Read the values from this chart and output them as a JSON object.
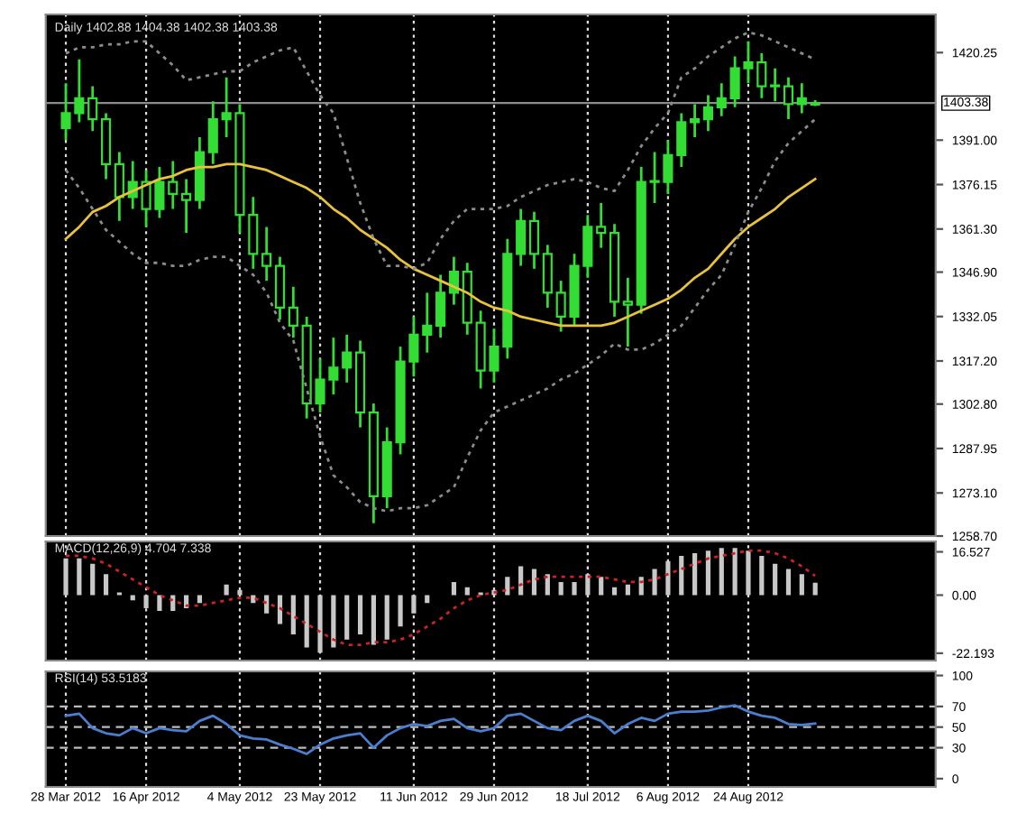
{
  "chart_data": [
    {
      "type": "candlestick",
      "title": "Daily 1402.88 1404.38 1402.38 1403.38",
      "color": "#33dd33",
      "categories": [
        null,
        null,
        null,
        null,
        null,
        null,
        null,
        null,
        null,
        null,
        null,
        null,
        null,
        null,
        null,
        null,
        null,
        null,
        null,
        null,
        null,
        null,
        null,
        null,
        null,
        null,
        null,
        null,
        null,
        null,
        null,
        null,
        null,
        null,
        null,
        null,
        null,
        null,
        null,
        null,
        null,
        null,
        null,
        null,
        null,
        null,
        null,
        null,
        null,
        null,
        null,
        null,
        null,
        null,
        null,
        null,
        null
      ],
      "ohlc": [
        [
          1395,
          1410,
          1391,
          1400
        ],
        [
          1400,
          1418,
          1397,
          1405
        ],
        [
          1405,
          1409,
          1394,
          1398
        ],
        [
          1398,
          1400,
          1378,
          1383
        ],
        [
          1383,
          1387,
          1364,
          1372
        ],
        [
          1372,
          1384,
          1368,
          1377
        ],
        [
          1377,
          1381,
          1362,
          1368
        ],
        [
          1368,
          1382,
          1365,
          1377
        ],
        [
          1377,
          1384,
          1368,
          1373
        ],
        [
          1373,
          1378,
          1360,
          1371
        ],
        [
          1371,
          1392,
          1368,
          1387
        ],
        [
          1387,
          1404,
          1383,
          1398
        ],
        [
          1398,
          1412,
          1392,
          1400
        ],
        [
          1400,
          1403,
          1360,
          1366
        ],
        [
          1366,
          1372,
          1348,
          1353
        ],
        [
          1353,
          1362,
          1344,
          1349
        ],
        [
          1349,
          1352,
          1331,
          1335
        ],
        [
          1335,
          1342,
          1325,
          1329
        ],
        [
          1329,
          1332,
          1298,
          1303
        ],
        [
          1303,
          1318,
          1300,
          1311
        ],
        [
          1311,
          1325,
          1306,
          1315
        ],
        [
          1315,
          1326,
          1310,
          1320
        ],
        [
          1320,
          1324,
          1295,
          1300
        ],
        [
          1300,
          1303,
          1263,
          1272
        ],
        [
          1272,
          1295,
          1268,
          1290
        ],
        [
          1290,
          1322,
          1286,
          1317
        ],
        [
          1317,
          1332,
          1312,
          1326
        ],
        [
          1326,
          1340,
          1320,
          1329
        ],
        [
          1329,
          1346,
          1325,
          1340
        ],
        [
          1340,
          1352,
          1336,
          1347
        ],
        [
          1347,
          1350,
          1326,
          1330
        ],
        [
          1330,
          1334,
          1308,
          1314
        ],
        [
          1314,
          1328,
          1310,
          1322
        ],
        [
          1322,
          1358,
          1318,
          1353
        ],
        [
          1353,
          1368,
          1349,
          1364
        ],
        [
          1364,
          1367,
          1348,
          1353
        ],
        [
          1353,
          1356,
          1335,
          1340
        ],
        [
          1340,
          1344,
          1327,
          1332
        ],
        [
          1332,
          1353,
          1329,
          1349
        ],
        [
          1349,
          1366,
          1345,
          1362
        ],
        [
          1362,
          1370,
          1355,
          1360
        ],
        [
          1360,
          1363,
          1332,
          1337
        ],
        [
          1337,
          1345,
          1322,
          1336
        ],
        [
          1336,
          1382,
          1333,
          1377
        ],
        [
          1377,
          1387,
          1370,
          1377
        ],
        [
          1377,
          1391,
          1373,
          1386
        ],
        [
          1386,
          1400,
          1382,
          1397
        ],
        [
          1397,
          1403,
          1392,
          1398
        ],
        [
          1398,
          1406,
          1394,
          1402
        ],
        [
          1402,
          1410,
          1399,
          1405
        ],
        [
          1405,
          1419,
          1402,
          1415
        ],
        [
          1415,
          1424,
          1410,
          1417
        ],
        [
          1417,
          1420,
          1405,
          1409
        ],
        [
          1409,
          1415,
          1404,
          1409
        ],
        [
          1409,
          1412,
          1398,
          1403
        ],
        [
          1403,
          1410,
          1400,
          1405
        ],
        [
          1402.88,
          1404.38,
          1402.38,
          1403.38
        ]
      ],
      "series": [
        {
          "type": "line",
          "color": "#e8c23a",
          "line_style": "solid",
          "values": [
            1358,
            1362,
            1367,
            1369,
            1372,
            1374,
            1376,
            1378,
            1379,
            1381,
            1382,
            1382,
            1383,
            1383,
            1382,
            1381,
            1379,
            1377,
            1375,
            1372,
            1368,
            1365,
            1361,
            1358,
            1355,
            1351,
            1348,
            1346,
            1344,
            1342,
            1340,
            1337,
            1335,
            1334,
            1332,
            1331,
            1330,
            1329,
            1329,
            1329,
            1329,
            1330,
            1332,
            1334,
            1336,
            1338,
            1341,
            1345,
            1348,
            1353,
            1358,
            1362,
            1365,
            1368,
            1372,
            1375,
            1378
          ]
        },
        {
          "type": "line",
          "color": "#8c8c8c",
          "line_style": "dotted",
          "values": [
            1420,
            1422,
            1422,
            1423,
            1423,
            1424,
            1424,
            1420,
            1416,
            1411,
            1412,
            1413,
            1414,
            1414,
            1417,
            1419,
            1421,
            1422,
            1414,
            1406,
            1400,
            1385,
            1370,
            1358,
            1349,
            1349,
            1348,
            1350,
            1358,
            1364,
            1368,
            1368,
            1368,
            1369,
            1372,
            1374,
            1376,
            1377,
            1378,
            1377,
            1375,
            1374,
            1381,
            1389,
            1395,
            1400,
            1412,
            1415,
            1419,
            1422,
            1425,
            1427,
            1426,
            1424,
            1422,
            1420,
            1418
          ]
        },
        {
          "type": "line",
          "color": "#8c8c8c",
          "line_style": "dotted",
          "values": [
            1381,
            1375,
            1368,
            1361,
            1357,
            1353,
            1350,
            1350,
            1349,
            1349,
            1351,
            1352,
            1352,
            1349,
            1346,
            1340,
            1330,
            1324,
            1308,
            1292,
            1279,
            1275,
            1270,
            1268,
            1267,
            1268,
            1268,
            1269,
            1272,
            1275,
            1285,
            1294,
            1300,
            1302,
            1304,
            1306,
            1308,
            1311,
            1313,
            1316,
            1319,
            1323,
            1321,
            1321,
            1323,
            1326,
            1329,
            1335,
            1341,
            1346,
            1356,
            1367,
            1375,
            1384,
            1390,
            1394,
            1398
          ]
        }
      ],
      "ylim": [
        1258.7,
        1433
      ],
      "yticks": [
        {
          "value": 1420.25,
          "label": "1420.25"
        },
        {
          "value": 1391.0,
          "label": "1391.00"
        },
        {
          "value": 1376.15,
          "label": "1376.15"
        },
        {
          "value": 1361.3,
          "label": "1361.30"
        },
        {
          "value": 1346.9,
          "label": "1346.90"
        },
        {
          "value": 1332.05,
          "label": "1332.05"
        },
        {
          "value": 1317.2,
          "label": "1317.20"
        },
        {
          "value": 1302.8,
          "label": "1302.80"
        },
        {
          "value": 1287.95,
          "label": "1287.95"
        },
        {
          "value": 1273.1,
          "label": "1273.10"
        },
        {
          "value": 1258.7,
          "label": "1258.70"
        }
      ],
      "ref_lines": [
        {
          "axis": "y",
          "value": 1403.38,
          "label": "1403.38",
          "color": "#8c8c8c",
          "line_style": "solid"
        }
      ],
      "grid": "x",
      "tick_labels": "y"
    },
    {
      "type": "bar",
      "title": "MACD(12,26,9) 4.704 7.338",
      "categories": [
        null,
        null,
        null,
        null,
        null,
        null,
        null,
        null,
        null,
        null,
        null,
        null,
        null,
        null,
        null,
        null,
        null,
        null,
        null,
        null,
        null,
        null,
        null,
        null,
        null,
        null,
        null,
        null,
        null,
        null,
        null,
        null,
        null,
        null,
        null,
        null,
        null,
        null,
        null,
        null,
        null,
        null,
        null,
        null,
        null,
        null,
        null,
        null,
        null,
        null,
        null,
        null,
        null,
        null,
        null,
        null,
        null
      ],
      "series": [
        {
          "type": "bar",
          "color": "#c8c8c8",
          "values": [
            14,
            14,
            12,
            8,
            1,
            -2,
            -5,
            -6,
            -6,
            -5,
            -3,
            0,
            4,
            2,
            -3,
            -7,
            -11,
            -15,
            -20,
            -22,
            -20,
            -17,
            -15,
            -19,
            -17,
            -12,
            -7,
            -3,
            0,
            5,
            3,
            1,
            2,
            7,
            11,
            10,
            8,
            5,
            5,
            8,
            7,
            3,
            4,
            7,
            10,
            13,
            15,
            16,
            17,
            18,
            18,
            17,
            15,
            12,
            10,
            8,
            4.704
          ]
        },
        {
          "type": "line",
          "color": "#cc2222",
          "line_style": "dotted",
          "values": [
            15,
            15,
            14,
            12,
            9,
            6,
            3,
            0,
            -2,
            -4,
            -4,
            -3,
            -2,
            -1,
            -1,
            -3,
            -5,
            -8,
            -11,
            -14,
            -17,
            -19,
            -19,
            -18,
            -18,
            -17,
            -15,
            -12,
            -9,
            -5,
            -2,
            0,
            1,
            2,
            4,
            6,
            7,
            7,
            7,
            7,
            7,
            6,
            5,
            5,
            6,
            8,
            10,
            12,
            14,
            15,
            16,
            17,
            17,
            16,
            14,
            11,
            7.338
          ]
        }
      ],
      "ylim": [
        -25,
        20.5
      ],
      "yticks": [
        {
          "value": 16.527,
          "label": "16.527"
        },
        {
          "value": 0,
          "label": "0.00"
        },
        {
          "value": -22.193,
          "label": "-22.193"
        }
      ],
      "grid": "x",
      "tick_labels": "y"
    },
    {
      "type": "line",
      "title": "RSI(14) 53.5183",
      "categories": [
        "28 Mar 2012",
        null,
        null,
        null,
        null,
        null,
        "16 Apr 2012",
        null,
        null,
        null,
        null,
        null,
        null,
        "4 May 2012",
        null,
        null,
        null,
        null,
        null,
        "23 May 2012",
        null,
        null,
        null,
        null,
        null,
        null,
        "11 Jun 2012",
        null,
        null,
        null,
        null,
        null,
        "29 Jun 2012",
        null,
        null,
        null,
        null,
        null,
        null,
        "18 Jul 2012",
        null,
        null,
        null,
        null,
        null,
        "6 Aug 2012",
        null,
        null,
        null,
        null,
        null,
        "24 Aug 2012",
        null,
        null,
        null,
        null,
        null
      ],
      "series": [
        {
          "type": "line",
          "color": "#4a7fd0",
          "line_style": "solid",
          "values": [
            61,
            63,
            49,
            44,
            42,
            49,
            44,
            49,
            47,
            46,
            56,
            61,
            53,
            42,
            39,
            38,
            33,
            29,
            24,
            33,
            39,
            42,
            44,
            30,
            42,
            49,
            53,
            51,
            56,
            58,
            49,
            46,
            49,
            61,
            63,
            56,
            49,
            47,
            56,
            61,
            56,
            44,
            53,
            59,
            56,
            63,
            65,
            65,
            66,
            69,
            71,
            65,
            61,
            59,
            53,
            52,
            53.5183
          ]
        }
      ],
      "ylim": [
        -8,
        104
      ],
      "yticks": [
        100,
        70,
        50,
        30,
        0
      ],
      "ref_lines": [
        {
          "axis": "y",
          "value": 70,
          "color": "#bbbbbb",
          "line_style": "dashed"
        },
        {
          "axis": "y",
          "value": 50,
          "color": "#bbbbbb",
          "line_style": "dashed"
        },
        {
          "axis": "y",
          "value": 30,
          "color": "#bbbbbb",
          "line_style": "dashed"
        }
      ],
      "grid": "x"
    }
  ]
}
